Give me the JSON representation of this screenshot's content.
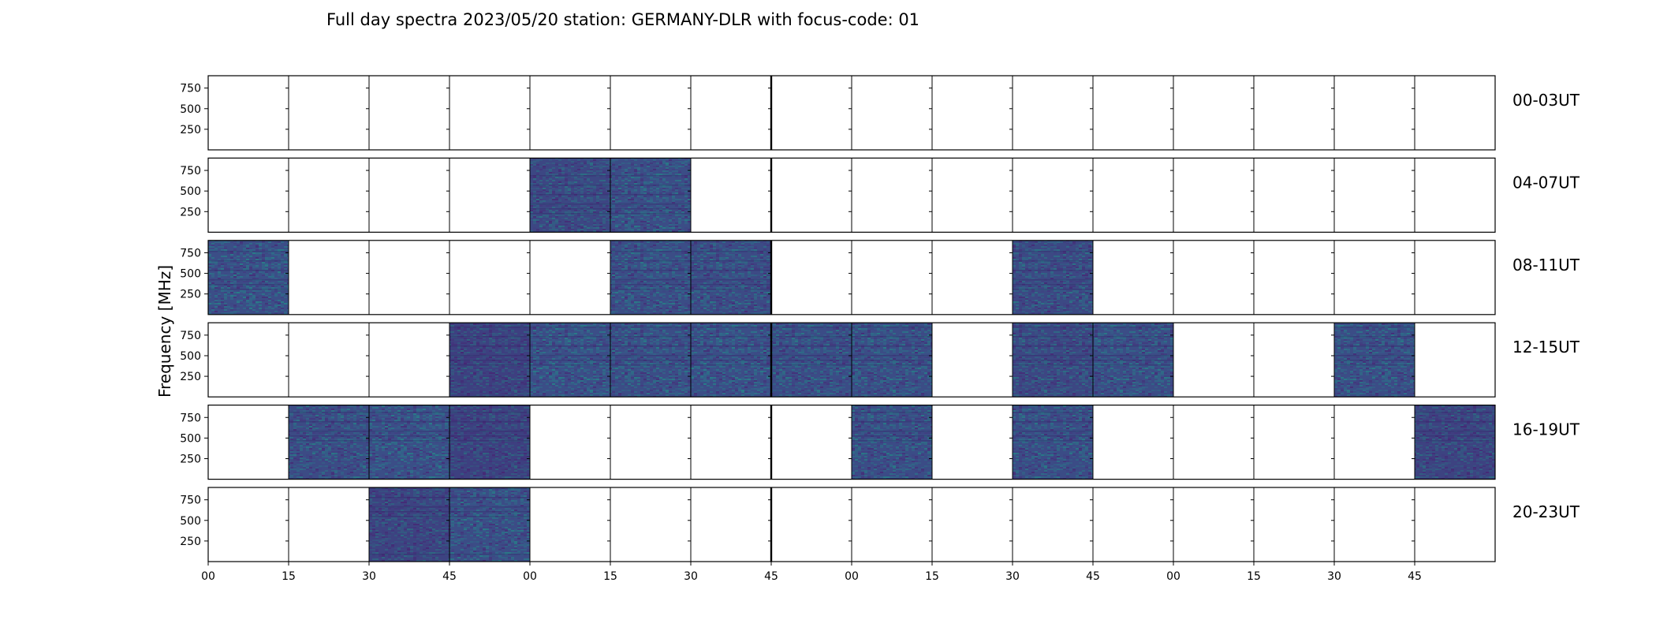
{
  "chart_data": {
    "type": "heatmap",
    "title": "Full day spectra 2023/05/20 station: GERMANY-DLR with focus-code: 01",
    "ylabel": "Frequency [MHz]",
    "xlabel": "",
    "ylim": [
      0,
      900
    ],
    "yticks": [
      250,
      500,
      750
    ],
    "xticks": [
      "00",
      "15",
      "30",
      "45",
      "00",
      "15",
      "30",
      "45",
      "00",
      "15",
      "30",
      "45",
      "00",
      "15",
      "30",
      "45"
    ],
    "rows": [
      {
        "label": "00-03UT",
        "cells": [
          null,
          null,
          null,
          null,
          null,
          null,
          null,
          null,
          null,
          null,
          null,
          null,
          null,
          null,
          null,
          null
        ]
      },
      {
        "label": "04-07UT",
        "cells": [
          null,
          null,
          null,
          null,
          0.3,
          0.45,
          null,
          null,
          null,
          null,
          null,
          null,
          null,
          null,
          null,
          null
        ]
      },
      {
        "label": "08-11UT",
        "cells": [
          0.5,
          null,
          null,
          null,
          null,
          0.45,
          0.4,
          null,
          null,
          null,
          0.35,
          null,
          null,
          null,
          null,
          null
        ]
      },
      {
        "label": "12-15UT",
        "cells": [
          null,
          null,
          null,
          0.15,
          0.5,
          0.45,
          0.5,
          0.42,
          0.45,
          null,
          0.3,
          0.45,
          null,
          null,
          0.45,
          null
        ]
      },
      {
        "label": "16-19UT",
        "cells": [
          null,
          0.4,
          0.5,
          0.15,
          null,
          null,
          null,
          null,
          0.42,
          null,
          0.42,
          null,
          null,
          null,
          null,
          0.2
        ]
      },
      {
        "label": "20-23UT",
        "cells": [
          null,
          null,
          0.2,
          0.45,
          null,
          null,
          null,
          null,
          null,
          null,
          null,
          null,
          null,
          null,
          null,
          null
        ]
      }
    ]
  }
}
